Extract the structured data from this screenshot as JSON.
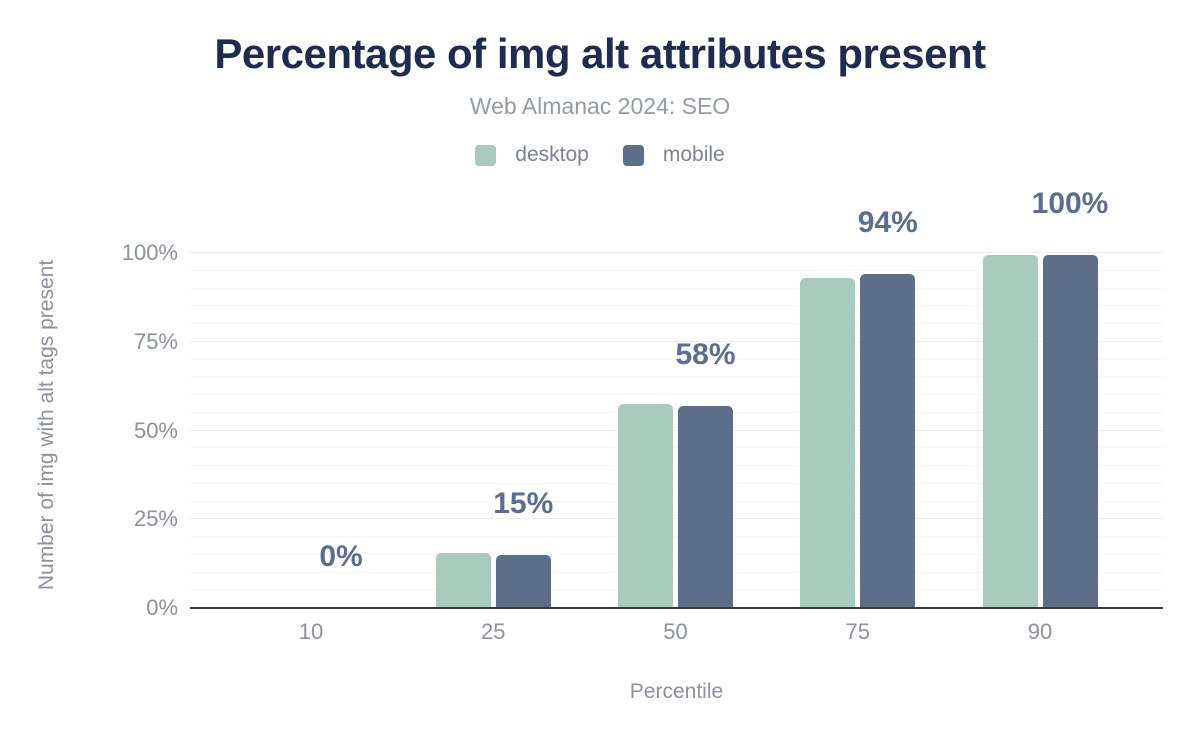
{
  "chart_data": {
    "type": "bar",
    "title": "Percentage of img alt attributes present",
    "subtitle": "Web Almanac 2024: SEO",
    "xlabel": "Percentile",
    "ylabel": "Number of img with alt tags present",
    "categories": [
      "10",
      "25",
      "50",
      "75",
      "90"
    ],
    "series": [
      {
        "name": "desktop",
        "color": "#a7cbbc",
        "values": [
          0,
          15.5,
          57.5,
          93,
          99.5
        ]
      },
      {
        "name": "mobile",
        "color": "#5d6e8b",
        "values": [
          0,
          15,
          57,
          94,
          99.5
        ]
      }
    ],
    "data_labels": [
      "0%",
      "15%",
      "58%",
      "94%",
      "100%"
    ],
    "yticks": [
      {
        "value": 0,
        "label": "0%"
      },
      {
        "value": 25,
        "label": "25%"
      },
      {
        "value": 50,
        "label": "50%"
      },
      {
        "value": 75,
        "label": "75%"
      },
      {
        "value": 100,
        "label": "100%"
      }
    ],
    "ylim": [
      0,
      100
    ],
    "grid": {
      "on": true,
      "minor_step": 5,
      "major_step": 25
    },
    "legend_position": "top",
    "colors": {
      "title": "#1d2c4f",
      "subtitle": "#959ba5",
      "axis_text": "#8b919d",
      "data_label": "#5a6e91",
      "axis_line": "#3a3a3a",
      "gridline_minor": "#f6f6f6",
      "gridline_major": "#ececec",
      "background": "#ffffff"
    }
  }
}
